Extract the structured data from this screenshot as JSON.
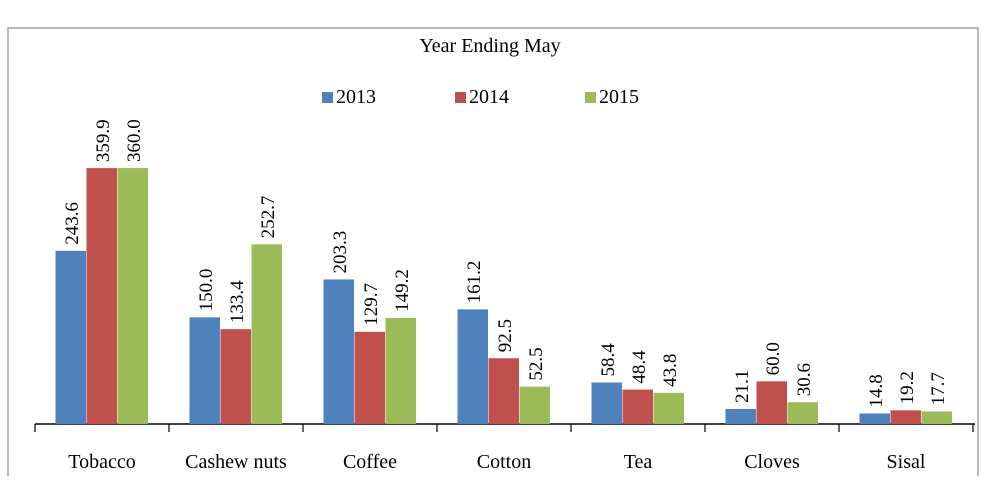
{
  "chart_data": {
    "type": "bar",
    "title": "Year Ending May",
    "categories": [
      "Tobacco",
      "Cashew nuts",
      "Coffee",
      "Cotton",
      "Tea",
      "Cloves",
      "Sisal"
    ],
    "series": [
      {
        "name": "2013",
        "color": "#4f81bd",
        "values": [
          243.6,
          150.0,
          203.3,
          161.2,
          58.4,
          21.1,
          14.8
        ],
        "value_labels": [
          "243.6",
          "150.0",
          "203.3",
          "161.2",
          "58.4",
          "21.1",
          "14.8"
        ]
      },
      {
        "name": "2014",
        "color": "#c0504d",
        "values": [
          359.9,
          133.4,
          129.7,
          92.5,
          48.4,
          60.0,
          19.2
        ],
        "value_labels": [
          "359.9",
          "133.4",
          "129.7",
          "92.5",
          "48.4",
          "60.0",
          "19.2"
        ]
      },
      {
        "name": "2015",
        "color": "#9bbb59",
        "values": [
          360.0,
          252.7,
          149.2,
          52.5,
          43.8,
          30.6,
          17.7
        ],
        "value_labels": [
          "360.0",
          "252.7",
          "149.2",
          "52.5",
          "43.8",
          "30.6",
          "17.7"
        ]
      }
    ],
    "legend": "top"
  }
}
